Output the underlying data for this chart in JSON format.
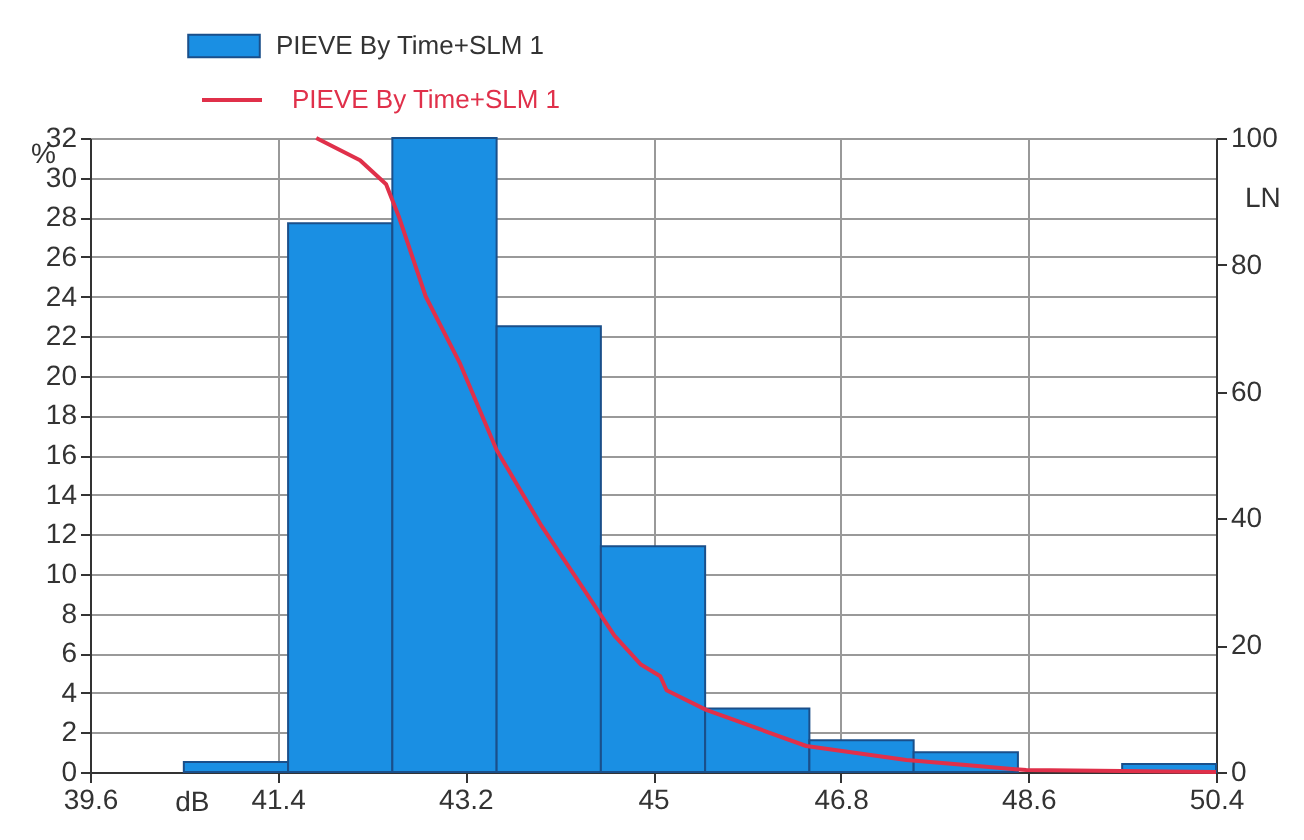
{
  "chart_data": {
    "type": "histogram",
    "xlabel": "dB",
    "ylabel": "%",
    "y2label": "LN",
    "bins": [
      40.5,
      41.5,
      42.5,
      43.5,
      44.5,
      45.5,
      46.5,
      47.5,
      48.5,
      49.5,
      50.4
    ],
    "series": [
      {
        "name": "PIEVE By Time+SLM 1",
        "color": "#1a8fe3",
        "values": [
          0.5,
          27.7,
          32,
          22.5,
          11.4,
          3.2,
          1.6,
          1.0,
          0,
          0.4
        ]
      },
      {
        "name": "PIEVE By Time+SLM 1",
        "type": "line",
        "axis": "y2",
        "color": "#e0304a",
        "x": [
          41.77,
          42.19,
          42.44,
          42.56,
          42.82,
          43.15,
          43.5,
          43.92,
          44.3,
          44.63,
          44.88,
          45.07,
          45.13,
          45.51,
          46.47,
          47.43,
          48.58,
          50.4
        ],
        "values": [
          100,
          96.5,
          92.7,
          87.7,
          75,
          64.4,
          50.8,
          39.1,
          29.7,
          21.5,
          17,
          15.1,
          12.9,
          9.8,
          4.1,
          1.9,
          0.3,
          0
        ]
      }
    ],
    "xlim": [
      39.6,
      50.4
    ],
    "xticks": [
      39.6,
      41.4,
      43.2,
      45,
      46.8,
      48.6,
      50.4
    ],
    "ylim": [
      0,
      32
    ],
    "yticks": [
      0,
      2,
      4,
      6,
      8,
      10,
      12,
      14,
      16,
      18,
      20,
      22,
      24,
      26,
      28,
      30,
      32
    ],
    "y2lim": [
      0,
      100
    ],
    "y2ticks": [
      0,
      20,
      40,
      60,
      80,
      100
    ],
    "grid": true,
    "legend": "top"
  }
}
